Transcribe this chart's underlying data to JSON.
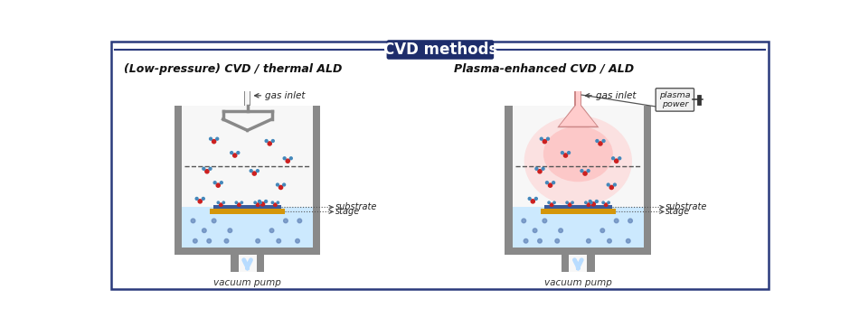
{
  "title": "CVD methods",
  "title_bg": "#1e2d6b",
  "title_text_color": "#ffffff",
  "left_subtitle": "(Low-pressure) CVD / thermal ALD",
  "right_subtitle": "Plasma-enhanced CVD / ALD",
  "bg_color": "#ffffff",
  "border_color": "#2a3a7c",
  "chamber_gray": "#898989",
  "chamber_inner": "#f7f7f7",
  "stage_color": "#d4960a",
  "substrate_color": "#3a5a9a",
  "heater_color": "#c8e8ff",
  "plasma_color": "#ffb8b8",
  "vacuum_color": "#b8dcff",
  "mol_red": "#cc2020",
  "mol_blue": "#4488bb",
  "mol_bond": "#666666",
  "dot_color": "#6688bb",
  "label_color": "#222222",
  "dashed_color": "#555555",
  "plasma_pink_outer": "#ffcccc",
  "plasma_pink_inner": "#ffaaaa"
}
